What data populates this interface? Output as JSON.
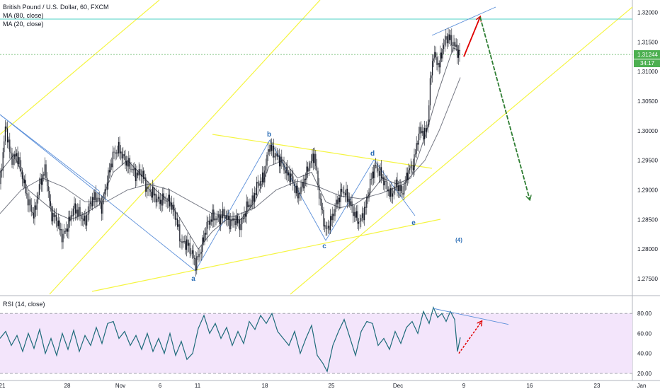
{
  "chart_data": [
    {
      "type": "candlestick",
      "title": "British Pound / U.S. Dollar, 60, FXCM",
      "indicators": [
        "MA (80, close)",
        "MA (20, close)"
      ],
      "ylim": [
        1.2725,
        1.3215
      ],
      "y_ticks": [
        "1.32000",
        "1.31500",
        "1.31000",
        "1.30500",
        "1.30000",
        "1.29500",
        "1.29000",
        "1.28500",
        "1.28000",
        "1.27500"
      ],
      "x_ticks": [
        "21",
        "28",
        "Nov",
        "6",
        "11",
        "18",
        "25",
        "Dec",
        "9",
        "16",
        "23",
        "Jan"
      ],
      "price_label": "1.31244",
      "countdown_label": "34:17",
      "wave_labels": [
        "b",
        "d",
        "a",
        "c",
        "e",
        "(4)"
      ],
      "close_path": [
        [
          0,
          1.291
        ],
        [
          8,
          1.301
        ],
        [
          16,
          1.295
        ],
        [
          24,
          1.296
        ],
        [
          32,
          1.292
        ],
        [
          40,
          1.288
        ],
        [
          48,
          1.2855
        ],
        [
          56,
          1.291
        ],
        [
          64,
          1.2935
        ],
        [
          72,
          1.286
        ],
        [
          80,
          1.285
        ],
        [
          88,
          1.282
        ],
        [
          96,
          1.284
        ],
        [
          104,
          1.287
        ],
        [
          112,
          1.286
        ],
        [
          120,
          1.2845
        ],
        [
          128,
          1.288
        ],
        [
          136,
          1.289
        ],
        [
          144,
          1.287
        ],
        [
          152,
          1.292
        ],
        [
          160,
          1.296
        ],
        [
          168,
          1.297
        ],
        [
          176,
          1.295
        ],
        [
          184,
          1.294
        ],
        [
          192,
          1.2925
        ],
        [
          200,
          1.293
        ],
        [
          208,
          1.29
        ],
        [
          216,
          1.2895
        ],
        [
          224,
          1.288
        ],
        [
          232,
          1.2885
        ],
        [
          240,
          1.288
        ],
        [
          248,
          1.2855
        ],
        [
          256,
          1.281
        ],
        [
          264,
          1.281
        ],
        [
          272,
          1.279
        ],
        [
          276,
          1.2775
        ],
        [
          284,
          1.28
        ],
        [
          292,
          1.284
        ],
        [
          300,
          1.2855
        ],
        [
          308,
          1.285
        ],
        [
          316,
          1.286
        ],
        [
          324,
          1.2845
        ],
        [
          332,
          1.285
        ],
        [
          340,
          1.284
        ],
        [
          348,
          1.287
        ],
        [
          356,
          1.288
        ],
        [
          364,
          1.291
        ],
        [
          372,
          1.292
        ],
        [
          380,
          1.2975
        ],
        [
          388,
          1.296
        ],
        [
          396,
          1.295
        ],
        [
          404,
          1.293
        ],
        [
          412,
          1.292
        ],
        [
          420,
          1.289
        ],
        [
          428,
          1.291
        ],
        [
          436,
          1.294
        ],
        [
          444,
          1.296
        ],
        [
          452,
          1.288
        ],
        [
          460,
          1.283
        ],
        [
          468,
          1.285
        ],
        [
          476,
          1.288
        ],
        [
          484,
          1.29
        ],
        [
          492,
          1.2885
        ],
        [
          500,
          1.286
        ],
        [
          508,
          1.2845
        ],
        [
          516,
          1.287
        ],
        [
          524,
          1.292
        ],
        [
          530,
          1.294
        ],
        [
          536,
          1.293
        ],
        [
          544,
          1.291
        ],
        [
          552,
          1.289
        ],
        [
          560,
          1.291
        ],
        [
          568,
          1.2895
        ],
        [
          576,
          1.293
        ],
        [
          584,
          1.2945
        ],
        [
          592,
          1.3
        ],
        [
          600,
          1.2995
        ],
        [
          604,
          1.301
        ],
        [
          608,
          1.309
        ],
        [
          612,
          1.313
        ],
        [
          620,
          1.311
        ],
        [
          626,
          1.3145
        ],
        [
          632,
          1.316
        ],
        [
          638,
          1.315
        ],
        [
          644,
          1.314
        ],
        [
          650,
          1.3124
        ]
      ],
      "ma_fast_path": [
        [
          0,
          1.293
        ],
        [
          20,
          1.296
        ],
        [
          40,
          1.29
        ],
        [
          60,
          1.288
        ],
        [
          80,
          1.286
        ],
        [
          100,
          1.285
        ],
        [
          120,
          1.286
        ],
        [
          140,
          1.2875
        ],
        [
          160,
          1.293
        ],
        [
          180,
          1.295
        ],
        [
          200,
          1.2925
        ],
        [
          220,
          1.29
        ],
        [
          240,
          1.288
        ],
        [
          260,
          1.284
        ],
        [
          280,
          1.28
        ],
        [
          300,
          1.283
        ],
        [
          320,
          1.285
        ],
        [
          340,
          1.285
        ],
        [
          360,
          1.288
        ],
        [
          380,
          1.294
        ],
        [
          400,
          1.295
        ],
        [
          420,
          1.292
        ],
        [
          440,
          1.293
        ],
        [
          460,
          1.288
        ],
        [
          480,
          1.287
        ],
        [
          500,
          1.2875
        ],
        [
          520,
          1.289
        ],
        [
          540,
          1.292
        ],
        [
          560,
          1.291
        ],
        [
          580,
          1.292
        ],
        [
          600,
          1.299
        ],
        [
          620,
          1.307
        ],
        [
          640,
          1.314
        ],
        [
          650,
          1.3135
        ]
      ],
      "ma_slow_path": [
        [
          0,
          1.286
        ],
        [
          30,
          1.29
        ],
        [
          60,
          1.292
        ],
        [
          90,
          1.2905
        ],
        [
          120,
          1.288
        ],
        [
          150,
          1.288
        ],
        [
          180,
          1.29
        ],
        [
          210,
          1.291
        ],
        [
          240,
          1.29
        ],
        [
          270,
          1.288
        ],
        [
          300,
          1.286
        ],
        [
          330,
          1.2855
        ],
        [
          360,
          1.287
        ],
        [
          390,
          1.29
        ],
        [
          420,
          1.2915
        ],
        [
          450,
          1.2905
        ],
        [
          480,
          1.289
        ],
        [
          510,
          1.2885
        ],
        [
          540,
          1.2895
        ],
        [
          570,
          1.291
        ],
        [
          600,
          1.295
        ],
        [
          620,
          1.3
        ],
        [
          640,
          1.306
        ],
        [
          650,
          1.309
        ]
      ]
    },
    {
      "type": "line",
      "title": "RSI (14, close)",
      "ylim": [
        15,
        95
      ],
      "y_ticks": [
        "80.00",
        "60.00",
        "40.00",
        "20.00"
      ],
      "rsi_path": [
        [
          0,
          55
        ],
        [
          8,
          62
        ],
        [
          16,
          48
        ],
        [
          24,
          58
        ],
        [
          32,
          42
        ],
        [
          40,
          60
        ],
        [
          48,
          45
        ],
        [
          56,
          64
        ],
        [
          64,
          40
        ],
        [
          72,
          55
        ],
        [
          80,
          38
        ],
        [
          88,
          60
        ],
        [
          96,
          44
        ],
        [
          104,
          63
        ],
        [
          112,
          42
        ],
        [
          120,
          58
        ],
        [
          128,
          48
        ],
        [
          136,
          66
        ],
        [
          144,
          50
        ],
        [
          152,
          70
        ],
        [
          160,
          72
        ],
        [
          168,
          55
        ],
        [
          176,
          62
        ],
        [
          184,
          48
        ],
        [
          192,
          58
        ],
        [
          200,
          44
        ],
        [
          208,
          60
        ],
        [
          216,
          42
        ],
        [
          224,
          55
        ],
        [
          232,
          40
        ],
        [
          240,
          60
        ],
        [
          248,
          38
        ],
        [
          256,
          52
        ],
        [
          264,
          34
        ],
        [
          272,
          40
        ],
        [
          280,
          65
        ],
        [
          288,
          78
        ],
        [
          296,
          60
        ],
        [
          304,
          70
        ],
        [
          312,
          55
        ],
        [
          320,
          66
        ],
        [
          328,
          48
        ],
        [
          336,
          62
        ],
        [
          344,
          50
        ],
        [
          352,
          72
        ],
        [
          360,
          64
        ],
        [
          368,
          78
        ],
        [
          376,
          70
        ],
        [
          384,
          80
        ],
        [
          392,
          62
        ],
        [
          400,
          55
        ],
        [
          408,
          48
        ],
        [
          416,
          62
        ],
        [
          424,
          40
        ],
        [
          432,
          55
        ],
        [
          440,
          68
        ],
        [
          448,
          38
        ],
        [
          456,
          30
        ],
        [
          462,
          22
        ],
        [
          470,
          48
        ],
        [
          478,
          62
        ],
        [
          486,
          74
        ],
        [
          494,
          56
        ],
        [
          502,
          38
        ],
        [
          510,
          62
        ],
        [
          518,
          72
        ],
        [
          526,
          70
        ],
        [
          534,
          48
        ],
        [
          542,
          55
        ],
        [
          550,
          44
        ],
        [
          558,
          62
        ],
        [
          566,
          50
        ],
        [
          574,
          66
        ],
        [
          582,
          72
        ],
        [
          590,
          60
        ],
        [
          598,
          82
        ],
        [
          606,
          70
        ],
        [
          612,
          86
        ],
        [
          618,
          76
        ],
        [
          624,
          80
        ],
        [
          630,
          72
        ],
        [
          636,
          82
        ],
        [
          642,
          74
        ],
        [
          646,
          42
        ],
        [
          650,
          56
        ]
      ]
    }
  ]
}
